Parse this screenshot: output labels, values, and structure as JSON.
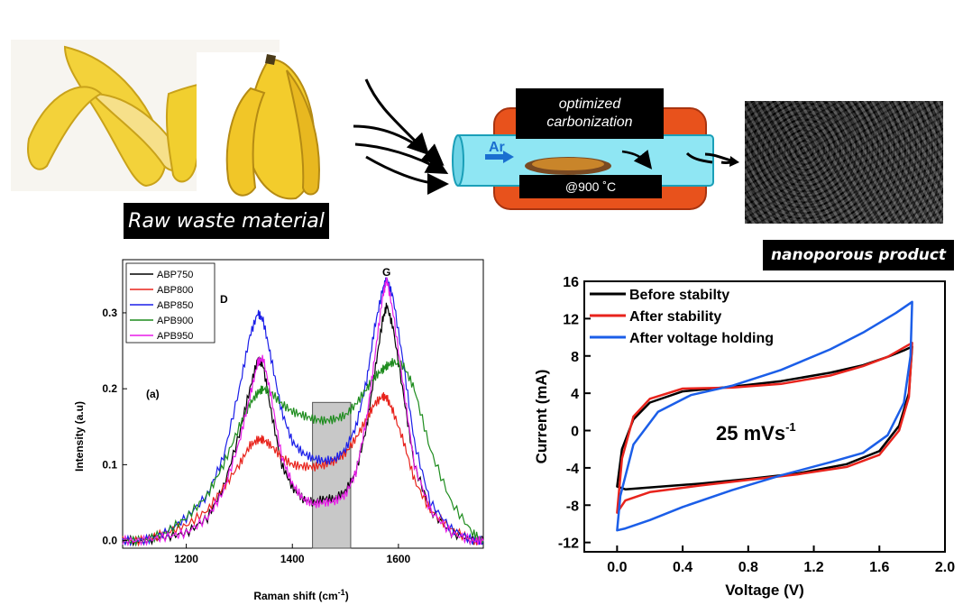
{
  "top": {
    "raw_label": "Raw waste material",
    "process_label_line1": "optimized",
    "process_label_line2": "carbonization",
    "temperature_label": "@900 ˚C",
    "gas_label": "Ar",
    "product_label": "nanoporous product"
  },
  "chart_data": [
    {
      "type": "line",
      "xlabel": "Raman shift (cm",
      "xlabel_sup": "-1",
      "xlabel_close": ")",
      "ylabel": "Intensity (a.u)",
      "xlim": [
        1080,
        1760
      ],
      "ylim": [
        -0.01,
        0.37
      ],
      "xticks": [
        1200,
        1400,
        1600
      ],
      "yticks": [
        0.0,
        0.1,
        0.2,
        0.3
      ],
      "ytick_labels": [
        "0.0",
        "0.1",
        "0.2",
        "0.3"
      ],
      "panel_label": "(a)",
      "peak_labels": [
        {
          "text": "D",
          "x": 1345
        },
        {
          "text": "G",
          "x": 1578
        }
      ],
      "shaded_region": [
        1438,
        1510
      ],
      "legend_position": "top-left",
      "x": [
        1080,
        1120,
        1160,
        1200,
        1240,
        1270,
        1300,
        1320,
        1335,
        1345,
        1360,
        1380,
        1400,
        1420,
        1440,
        1460,
        1480,
        1500,
        1520,
        1540,
        1555,
        1570,
        1578,
        1590,
        1610,
        1630,
        1660,
        1700,
        1740,
        1760
      ],
      "series": [
        {
          "name": "ABP750",
          "color": "#000000",
          "values": [
            0.0,
            0.0,
            0.005,
            0.01,
            0.03,
            0.07,
            0.14,
            0.2,
            0.24,
            0.23,
            0.17,
            0.1,
            0.07,
            0.055,
            0.05,
            0.055,
            0.055,
            0.065,
            0.09,
            0.15,
            0.22,
            0.29,
            0.31,
            0.28,
            0.19,
            0.1,
            0.04,
            0.01,
            0.0,
            0.0
          ]
        },
        {
          "name": "ABP800",
          "color": "#e8231c",
          "values": [
            0.0,
            0.0,
            0.01,
            0.02,
            0.04,
            0.07,
            0.1,
            0.125,
            0.133,
            0.133,
            0.125,
            0.11,
            0.1,
            0.098,
            0.097,
            0.1,
            0.105,
            0.115,
            0.135,
            0.16,
            0.18,
            0.19,
            0.188,
            0.17,
            0.13,
            0.08,
            0.04,
            0.015,
            0.0,
            0.0
          ]
        },
        {
          "name": "ABP850",
          "color": "#1b1ee8",
          "values": [
            0.0,
            0.0,
            0.01,
            0.03,
            0.06,
            0.11,
            0.2,
            0.27,
            0.3,
            0.29,
            0.24,
            0.17,
            0.13,
            0.115,
            0.108,
            0.105,
            0.107,
            0.12,
            0.15,
            0.21,
            0.28,
            0.33,
            0.345,
            0.32,
            0.23,
            0.13,
            0.05,
            0.015,
            0.0,
            0.0
          ]
        },
        {
          "name": "APB900",
          "color": "#1e8c1e",
          "values": [
            0.0,
            0.0,
            0.01,
            0.03,
            0.06,
            0.1,
            0.15,
            0.18,
            0.195,
            0.2,
            0.195,
            0.18,
            0.17,
            0.165,
            0.16,
            0.158,
            0.16,
            0.165,
            0.18,
            0.2,
            0.215,
            0.225,
            0.23,
            0.235,
            0.23,
            0.2,
            0.12,
            0.05,
            0.01,
            0.0
          ]
        },
        {
          "name": "APB950",
          "color": "#e81ce8",
          "values": [
            0.0,
            0.0,
            0.005,
            0.01,
            0.03,
            0.065,
            0.13,
            0.19,
            0.235,
            0.24,
            0.19,
            0.11,
            0.075,
            0.055,
            0.048,
            0.05,
            0.052,
            0.06,
            0.09,
            0.16,
            0.24,
            0.32,
            0.345,
            0.3,
            0.2,
            0.1,
            0.04,
            0.01,
            0.0,
            0.0
          ]
        }
      ]
    },
    {
      "type": "line",
      "xlabel": "Voltage (V)",
      "ylabel": "Current (mA)",
      "xlim": [
        -0.2,
        2.0
      ],
      "ylim": [
        -13,
        16
      ],
      "xticks": [
        0.0,
        0.4,
        0.8,
        1.2,
        1.6,
        2.0
      ],
      "xtick_labels": [
        "0.0",
        "0.4",
        "0.8",
        "1.2",
        "1.6",
        "2.0"
      ],
      "yticks": [
        -12,
        -8,
        -4,
        0,
        4,
        8,
        12,
        16
      ],
      "annotation": "25 mVs",
      "annotation_sup": "-1",
      "legend_position": "top-left",
      "series": [
        {
          "name": "Before stabilty",
          "color": "#000000",
          "x": [
            0.0,
            0.03,
            0.1,
            0.2,
            0.4,
            0.7,
            1.0,
            1.3,
            1.5,
            1.65,
            1.75,
            1.8,
            1.78,
            1.72,
            1.6,
            1.4,
            1.1,
            0.8,
            0.5,
            0.2,
            0.05,
            0.0
          ],
          "y": [
            -6.0,
            -2.0,
            1.2,
            3.0,
            4.2,
            4.7,
            5.3,
            6.2,
            7.0,
            7.9,
            8.6,
            9.0,
            4.0,
            0.5,
            -2.2,
            -3.6,
            -4.6,
            -5.2,
            -5.7,
            -6.1,
            -6.3,
            -6.0
          ]
        },
        {
          "name": "After stability",
          "color": "#e8231c",
          "x": [
            0.0,
            0.03,
            0.1,
            0.2,
            0.4,
            0.7,
            1.0,
            1.3,
            1.5,
            1.65,
            1.75,
            1.8,
            1.78,
            1.72,
            1.6,
            1.4,
            1.1,
            0.8,
            0.5,
            0.2,
            0.05,
            0.0
          ],
          "y": [
            -8.8,
            -3.0,
            1.5,
            3.4,
            4.5,
            4.6,
            5.0,
            5.9,
            6.9,
            7.9,
            8.9,
            9.4,
            3.6,
            0.0,
            -2.6,
            -3.9,
            -4.7,
            -5.3,
            -5.9,
            -6.6,
            -7.5,
            -8.8
          ]
        },
        {
          "name": "After voltage holding",
          "color": "#1b5ee8",
          "x": [
            0.0,
            0.02,
            0.1,
            0.25,
            0.45,
            0.7,
            1.0,
            1.3,
            1.5,
            1.7,
            1.8,
            1.79,
            1.75,
            1.65,
            1.5,
            1.3,
            1.0,
            0.7,
            0.4,
            0.2,
            0.05,
            0.0
          ],
          "y": [
            -10.7,
            -7.0,
            -1.5,
            2.0,
            3.8,
            4.8,
            6.5,
            8.7,
            10.5,
            12.6,
            13.8,
            8.0,
            3.0,
            -0.5,
            -2.4,
            -3.4,
            -4.8,
            -6.4,
            -8.2,
            -9.6,
            -10.5,
            -10.7
          ]
        }
      ]
    }
  ]
}
